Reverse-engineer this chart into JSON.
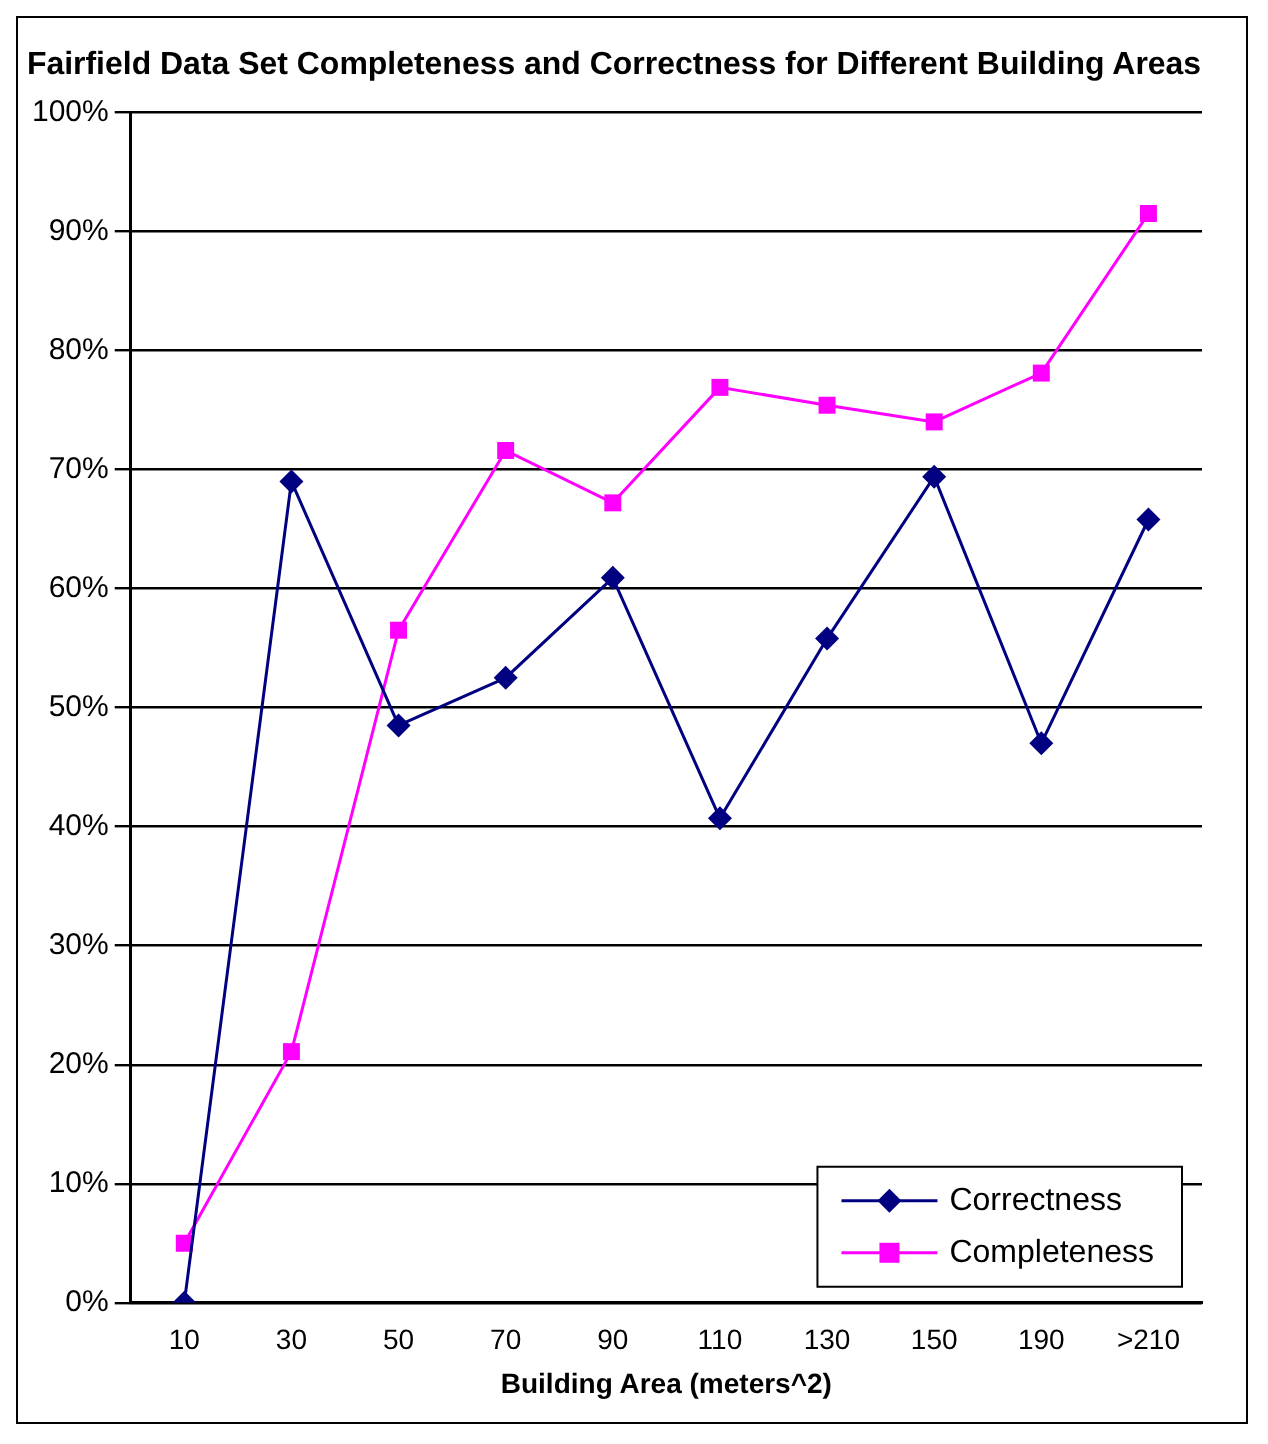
{
  "chart_data": {
    "type": "line",
    "title": "Fairfield Data Set Completeness and Correctness for Different Building Areas",
    "xlabel": "Building Area (meters^2)",
    "categories": [
      "10",
      "30",
      "50",
      "70",
      "90",
      "110",
      "130",
      "150",
      "190",
      ">210"
    ],
    "series": [
      {
        "name": "Correctness",
        "color": "#000080",
        "marker": "diamond",
        "values": [
          0,
          69,
          48.5,
          52.5,
          60.9,
          40.7,
          55.8,
          69.4,
          47.0,
          65.8
        ]
      },
      {
        "name": "Completeness",
        "color": "#ff00ff",
        "marker": "square",
        "values": [
          5.0,
          21.1,
          56.5,
          71.6,
          67.2,
          76.9,
          75.4,
          74.0,
          78.1,
          91.5
        ]
      }
    ],
    "ylim": [
      0,
      100
    ],
    "yticks": [
      {
        "value": 0,
        "label": "0%"
      },
      {
        "value": 10,
        "label": "10%"
      },
      {
        "value": 20,
        "label": "20%"
      },
      {
        "value": 30,
        "label": "30%"
      },
      {
        "value": 40,
        "label": "40%"
      },
      {
        "value": 50,
        "label": "50%"
      },
      {
        "value": 60,
        "label": "60%"
      },
      {
        "value": 70,
        "label": "70%"
      },
      {
        "value": 80,
        "label": "80%"
      },
      {
        "value": 90,
        "label": "90%"
      },
      {
        "value": 100,
        "label": "100%"
      }
    ],
    "grid": "y",
    "legend": "bottom right",
    "line_style": "solid"
  }
}
